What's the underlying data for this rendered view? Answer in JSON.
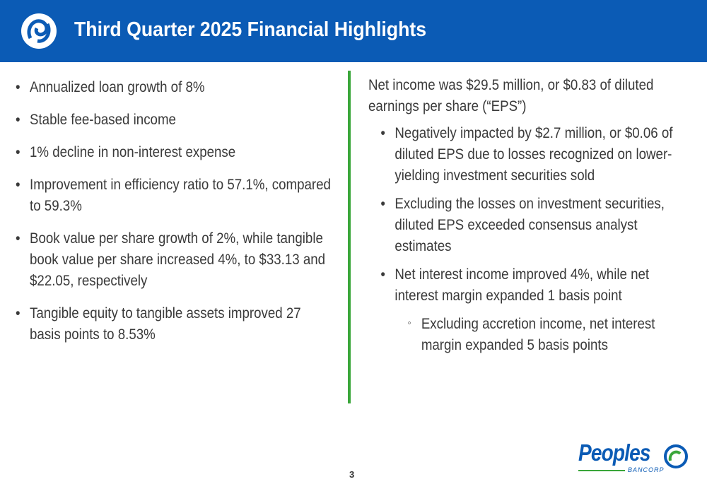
{
  "header": {
    "title": "Third Quarter 2025 Financial Highlights"
  },
  "left_bullets": [
    "Annualized loan growth of 8%",
    "Stable fee-based income",
    "1% decline in non-interest expense",
    "Improvement in efficiency ratio to 57.1%, compared to 59.3%",
    "Book value per share growth of 2%, while tangible book value per share increased 4%, to $33.13 and $22.05, respectively",
    "Tangible equity to tangible assets improved 27 basis points to 8.53%"
  ],
  "right": {
    "intro": "Net income was $29.5 million, or $0.83 of diluted earnings per share (“EPS”)",
    "bullets": [
      {
        "text": "Negatively impacted by $2.7 million, or $0.06 of diluted EPS due to losses recognized on lower-yielding investment securities sold"
      },
      {
        "text": "Excluding the losses on investment securities, diluted EPS exceeded consensus analyst estimates"
      },
      {
        "text": "Net interest income improved 4%, while net interest margin expanded 1 basis point",
        "sub_bullets": [
          "Excluding accretion income, net interest margin expanded 5 basis points"
        ]
      }
    ]
  },
  "page_number": "3",
  "logo": {
    "name": "Peoples",
    "subtitle": "BANCORP"
  }
}
